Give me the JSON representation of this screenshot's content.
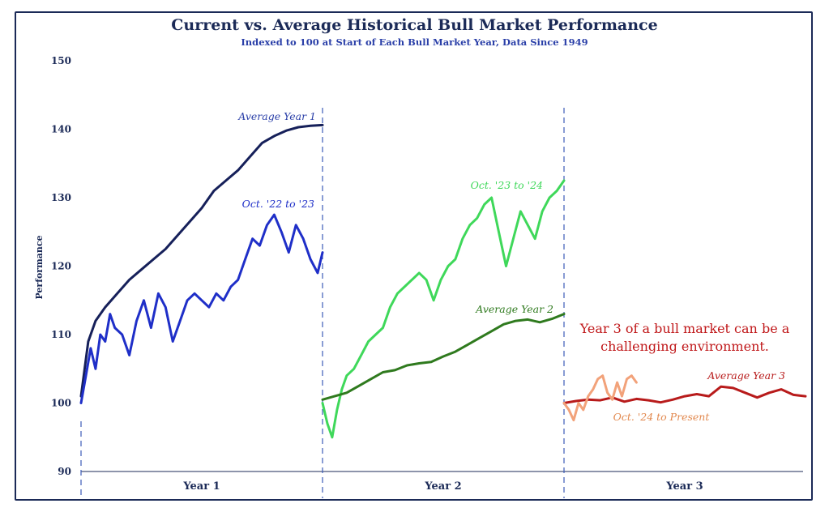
{
  "chart_data": {
    "type": "line",
    "title": "Current vs. Average Historical Bull Market Performance",
    "subtitle": "Indexed to 100 at Start of Each Bull Market Year, Data Since 1949",
    "ylabel": "Performance",
    "ylim": [
      90,
      150
    ],
    "yticks": [
      90,
      100,
      110,
      120,
      130,
      140,
      150
    ],
    "year_labels": [
      "Year 1",
      "Year 2",
      "Year 3"
    ],
    "callout": [
      "Year 3 of a bull market can be a",
      "challenging environment."
    ],
    "series": [
      {
        "name": "Average Year 1",
        "label": "Average Year 1",
        "color": "#16205a",
        "year": 1,
        "x": [
          0,
          0.03,
          0.06,
          0.1,
          0.15,
          0.2,
          0.25,
          0.3,
          0.35,
          0.4,
          0.45,
          0.5,
          0.55,
          0.6,
          0.65,
          0.7,
          0.75,
          0.8,
          0.85,
          0.9,
          0.95,
          1.0
        ],
        "values": [
          101,
          109,
          112,
          114,
          116,
          118,
          119.5,
          121,
          122.5,
          124.5,
          126.5,
          128.5,
          131,
          132.5,
          134,
          136,
          138,
          139,
          139.8,
          140.3,
          140.5,
          140.6
        ]
      },
      {
        "name": "Oct. '22 to '23",
        "label": "Oct. '22 to '23",
        "color": "#1f2fc8",
        "year": 1,
        "x": [
          0,
          0.02,
          0.04,
          0.06,
          0.08,
          0.1,
          0.12,
          0.14,
          0.17,
          0.2,
          0.23,
          0.26,
          0.29,
          0.32,
          0.35,
          0.38,
          0.41,
          0.44,
          0.47,
          0.5,
          0.53,
          0.56,
          0.59,
          0.62,
          0.65,
          0.68,
          0.71,
          0.74,
          0.77,
          0.8,
          0.83,
          0.86,
          0.89,
          0.92,
          0.95,
          0.98,
          1.0
        ],
        "values": [
          100,
          104,
          108,
          105,
          110,
          109,
          113,
          111,
          110,
          107,
          112,
          115,
          111,
          116,
          114,
          109,
          112,
          115,
          116,
          115,
          114,
          116,
          115,
          117,
          118,
          121,
          124,
          123,
          126,
          127.5,
          125,
          122,
          126,
          124,
          121,
          119,
          122
        ]
      },
      {
        "name": "Oct. '23 to '24",
        "label": "Oct. '23 to '24",
        "color": "#3fd85a",
        "year": 2,
        "x": [
          0,
          0.02,
          0.04,
          0.06,
          0.08,
          0.1,
          0.13,
          0.16,
          0.19,
          0.22,
          0.25,
          0.28,
          0.31,
          0.34,
          0.37,
          0.4,
          0.43,
          0.46,
          0.49,
          0.52,
          0.55,
          0.58,
          0.61,
          0.64,
          0.67,
          0.7,
          0.73,
          0.76,
          0.79,
          0.82,
          0.85,
          0.88,
          0.91,
          0.94,
          0.97,
          1.0
        ],
        "values": [
          100,
          97,
          95,
          99,
          102,
          104,
          105,
          107,
          109,
          110,
          111,
          114,
          116,
          117,
          118,
          119,
          118,
          115,
          118,
          120,
          121,
          124,
          126,
          127,
          129,
          130,
          125,
          120,
          124,
          128,
          126,
          124,
          128,
          130,
          131,
          132.5
        ]
      },
      {
        "name": "Average Year 2",
        "label": "Average Year 2",
        "color": "#2f7a1e",
        "year": 2,
        "x": [
          0,
          0.05,
          0.1,
          0.15,
          0.2,
          0.25,
          0.3,
          0.35,
          0.4,
          0.45,
          0.5,
          0.55,
          0.6,
          0.65,
          0.7,
          0.75,
          0.8,
          0.85,
          0.9,
          0.95,
          1.0
        ],
        "values": [
          100.5,
          101,
          101.5,
          102.5,
          103.5,
          104.5,
          104.8,
          105.5,
          105.8,
          106,
          106.8,
          107.5,
          108.5,
          109.5,
          110.5,
          111.5,
          112,
          112.2,
          111.8,
          112.3,
          113
        ]
      },
      {
        "name": "Average Year 3",
        "label": "Average Year 3",
        "color": "#b81b1b",
        "year": 3,
        "x": [
          0,
          0.05,
          0.1,
          0.15,
          0.2,
          0.25,
          0.3,
          0.35,
          0.4,
          0.45,
          0.5,
          0.55,
          0.6,
          0.65,
          0.7,
          0.75,
          0.8,
          0.85,
          0.9,
          0.95,
          1.0
        ],
        "values": [
          100,
          100.3,
          100.5,
          100.4,
          100.8,
          100.2,
          100.6,
          100.4,
          100.1,
          100.5,
          101,
          101.3,
          101,
          102.4,
          102.2,
          101.5,
          100.8,
          101.5,
          102,
          101.2,
          101
        ]
      },
      {
        "name": "Oct. '24 to Present",
        "label": "Oct. '24 to Present",
        "color": "#f2a27a",
        "year": 3,
        "x": [
          0,
          0.02,
          0.04,
          0.06,
          0.08,
          0.1,
          0.12,
          0.14,
          0.16,
          0.18,
          0.2,
          0.22,
          0.24,
          0.26,
          0.28,
          0.3
        ],
        "values": [
          100,
          99,
          97.5,
          100,
          99,
          101,
          102,
          103.5,
          104,
          101.5,
          100.5,
          103,
          101,
          103.5,
          104,
          103
        ]
      }
    ]
  }
}
